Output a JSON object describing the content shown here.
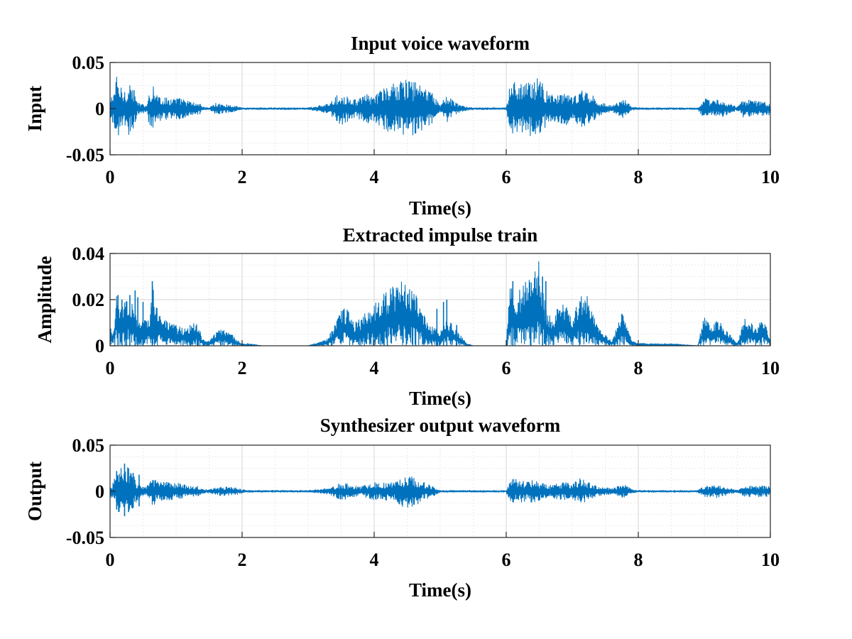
{
  "colors": {
    "series": "#0072BD",
    "grid_major": "#d6d6d6",
    "grid_minor": "#e3e3e3",
    "axes": "#262626"
  },
  "chart_data": [
    {
      "type": "line",
      "title": "Input voice waveform",
      "xlabel": "Time(s)",
      "ylabel": "Input",
      "xlim": [
        0,
        10
      ],
      "ylim": [
        -0.05,
        0.05
      ],
      "xticks": [
        0,
        2,
        4,
        6,
        8,
        10
      ],
      "yticks": [
        -0.05,
        0,
        0.05
      ],
      "xtick_labels": [
        "0",
        "2",
        "4",
        "6",
        "8",
        "10"
      ],
      "ytick_labels": [
        "-0.05",
        "0",
        "0.05"
      ],
      "grid": "major and minor",
      "series": [
        {
          "kind": "symmetric",
          "env_x": [
            0,
            0.05,
            0.1,
            0.15,
            0.2,
            0.25,
            0.3,
            0.35,
            0.4,
            0.45,
            0.5,
            0.55,
            0.6,
            0.65,
            0.7,
            0.8,
            0.9,
            1.0,
            1.1,
            1.2,
            1.3,
            1.35,
            1.4,
            1.5,
            1.6,
            1.7,
            1.8,
            1.9,
            2.0,
            2.1,
            2.3,
            2.6,
            3.0,
            3.3,
            3.4,
            3.5,
            3.6,
            3.7,
            3.8,
            3.9,
            4.0,
            4.1,
            4.2,
            4.3,
            4.4,
            4.5,
            4.6,
            4.7,
            4.8,
            4.9,
            5.0,
            5.1,
            5.2,
            5.3,
            5.4,
            5.5,
            5.6,
            5.8,
            6.0,
            6.05,
            6.1,
            6.2,
            6.3,
            6.4,
            6.5,
            6.6,
            6.7,
            6.8,
            6.9,
            7.0,
            7.1,
            7.2,
            7.3,
            7.4,
            7.6,
            7.75,
            7.8,
            7.9,
            8.0,
            8.5,
            8.9,
            9.0,
            9.1,
            9.2,
            9.3,
            9.5,
            9.6,
            9.7,
            9.8,
            9.9,
            10.0
          ],
          "env_y": [
            0.008,
            0.02,
            0.035,
            0.025,
            0.02,
            0.025,
            0.03,
            0.025,
            0.01,
            0.005,
            0.005,
            0.004,
            0.02,
            0.028,
            0.018,
            0.012,
            0.012,
            0.012,
            0.011,
            0.008,
            0.006,
            0.007,
            0.002,
            0.001,
            0.006,
            0.005,
            0.004,
            0.003,
            0.001,
            0.001,
            0.001,
            0.001,
            0.001,
            0.005,
            0.012,
            0.018,
            0.014,
            0.01,
            0.012,
            0.016,
            0.014,
            0.02,
            0.025,
            0.028,
            0.03,
            0.032,
            0.03,
            0.028,
            0.022,
            0.015,
            0.004,
            0.015,
            0.008,
            0.004,
            0.002,
            0.001,
            0.001,
            0.001,
            0.001,
            0.022,
            0.03,
            0.028,
            0.028,
            0.032,
            0.035,
            0.02,
            0.016,
            0.015,
            0.018,
            0.012,
            0.02,
            0.02,
            0.015,
            0.008,
            0.003,
            0.01,
            0.01,
            0.002,
            0.001,
            0.001,
            0.001,
            0.012,
            0.008,
            0.01,
            0.008,
            0.002,
            0.01,
            0.009,
            0.008,
            0.008,
            0.007
          ]
        }
      ]
    },
    {
      "type": "line",
      "title": "Extracted impulse train",
      "xlabel": "Time(s)",
      "ylabel": "Amplitude",
      "xlim": [
        0,
        10
      ],
      "ylim": [
        0,
        0.04
      ],
      "xticks": [
        0,
        2,
        4,
        6,
        8,
        10
      ],
      "yticks": [
        0,
        0.02,
        0.04
      ],
      "xtick_labels": [
        "0",
        "2",
        "4",
        "6",
        "8",
        "10"
      ],
      "ytick_labels": [
        "0",
        "0.02",
        "0.04"
      ],
      "grid": "major and minor",
      "series": [
        {
          "kind": "envelope",
          "env_x": [
            0,
            0.05,
            0.1,
            0.15,
            0.2,
            0.25,
            0.3,
            0.35,
            0.4,
            0.45,
            0.5,
            0.55,
            0.6,
            0.65,
            0.7,
            0.8,
            0.9,
            1.0,
            1.1,
            1.2,
            1.3,
            1.35,
            1.4,
            1.5,
            1.6,
            1.7,
            1.8,
            1.9,
            2.0,
            2.1,
            2.3,
            2.6,
            3.0,
            3.3,
            3.4,
            3.5,
            3.6,
            3.7,
            3.8,
            3.9,
            4.0,
            4.1,
            4.2,
            4.3,
            4.4,
            4.5,
            4.6,
            4.7,
            4.8,
            4.9,
            5.0,
            5.1,
            5.2,
            5.3,
            5.4,
            5.5,
            5.6,
            5.8,
            6.0,
            6.05,
            6.1,
            6.2,
            6.3,
            6.4,
            6.5,
            6.6,
            6.7,
            6.8,
            6.9,
            7.0,
            7.1,
            7.2,
            7.3,
            7.4,
            7.6,
            7.75,
            7.8,
            7.9,
            8.0,
            8.5,
            8.9,
            9.0,
            9.1,
            9.2,
            9.3,
            9.5,
            9.6,
            9.7,
            9.8,
            9.9,
            10.0
          ],
          "env_y": [
            0.008,
            0.006,
            0.022,
            0.015,
            0.018,
            0.024,
            0.02,
            0.018,
            0.012,
            0.01,
            0.012,
            0.012,
            0.014,
            0.028,
            0.02,
            0.012,
            0.01,
            0.009,
            0.008,
            0.009,
            0.01,
            0.008,
            0.003,
            0.002,
            0.006,
            0.008,
            0.007,
            0.003,
            0.001,
            0.001,
            0.0,
            0.0,
            0.0,
            0.003,
            0.01,
            0.018,
            0.016,
            0.01,
            0.012,
            0.016,
            0.018,
            0.022,
            0.024,
            0.026,
            0.028,
            0.027,
            0.024,
            0.02,
            0.01,
            0.008,
            0.006,
            0.012,
            0.009,
            0.005,
            0.001,
            0.0,
            0.0,
            0.0,
            0.0,
            0.026,
            0.024,
            0.024,
            0.03,
            0.034,
            0.037,
            0.016,
            0.012,
            0.02,
            0.018,
            0.012,
            0.02,
            0.024,
            0.016,
            0.008,
            0.002,
            0.014,
            0.014,
            0.002,
            0.001,
            0.001,
            0.0,
            0.014,
            0.008,
            0.012,
            0.008,
            0.001,
            0.012,
            0.01,
            0.009,
            0.011,
            0.004
          ],
          "spikes": [
            [
              0.12,
              0.022
            ],
            [
              0.18,
              0.02
            ],
            [
              0.25,
              0.018
            ],
            [
              0.3,
              0.022
            ],
            [
              0.38,
              0.024
            ],
            [
              0.42,
              0.021
            ],
            [
              0.5,
              0.019
            ],
            [
              0.64,
              0.028
            ],
            [
              4.15,
              0.016
            ],
            [
              4.2,
              0.015
            ],
            [
              4.95,
              0.016
            ],
            [
              5.05,
              0.019
            ],
            [
              5.1,
              0.02
            ],
            [
              5.25,
              0.009
            ],
            [
              6.1,
              0.028
            ],
            [
              6.55,
              0.03
            ],
            [
              6.6,
              0.028
            ]
          ]
        }
      ]
    },
    {
      "type": "line",
      "title": "Synthesizer output waveform",
      "xlabel": "Time(s)",
      "ylabel": "Output",
      "xlim": [
        0,
        10
      ],
      "ylim": [
        -0.05,
        0.05
      ],
      "xticks": [
        0,
        2,
        4,
        6,
        8,
        10
      ],
      "yticks": [
        -0.05,
        0,
        0.05
      ],
      "xtick_labels": [
        "0",
        "2",
        "4",
        "6",
        "8",
        "10"
      ],
      "ytick_labels": [
        "-0.05",
        "0",
        "0.05"
      ],
      "grid": "major and minor",
      "series": [
        {
          "kind": "symmetric",
          "env_x": [
            0,
            0.05,
            0.1,
            0.15,
            0.2,
            0.25,
            0.3,
            0.35,
            0.4,
            0.45,
            0.5,
            0.55,
            0.6,
            0.65,
            0.7,
            0.8,
            0.9,
            1.0,
            1.1,
            1.2,
            1.3,
            1.35,
            1.4,
            1.5,
            1.6,
            1.7,
            1.8,
            1.9,
            2.0,
            2.1,
            2.3,
            2.6,
            3.0,
            3.3,
            3.4,
            3.5,
            3.6,
            3.7,
            3.8,
            3.9,
            4.0,
            4.1,
            4.2,
            4.3,
            4.4,
            4.5,
            4.6,
            4.7,
            4.8,
            4.9,
            5.0,
            5.1,
            5.2,
            5.3,
            5.4,
            5.5,
            5.6,
            5.8,
            6.0,
            6.05,
            6.1,
            6.2,
            6.3,
            6.4,
            6.5,
            6.6,
            6.7,
            6.8,
            6.9,
            7.0,
            7.1,
            7.2,
            7.3,
            7.4,
            7.6,
            7.75,
            7.8,
            7.9,
            8.0,
            8.5,
            8.9,
            9.0,
            9.1,
            9.2,
            9.3,
            9.5,
            9.6,
            9.7,
            9.8,
            9.9,
            10.0
          ],
          "env_y": [
            0.006,
            0.01,
            0.02,
            0.028,
            0.022,
            0.028,
            0.024,
            0.018,
            0.012,
            0.008,
            0.006,
            0.005,
            0.01,
            0.016,
            0.012,
            0.01,
            0.01,
            0.009,
            0.008,
            0.006,
            0.006,
            0.005,
            0.002,
            0.002,
            0.004,
            0.005,
            0.005,
            0.004,
            0.002,
            0.001,
            0.001,
            0.001,
            0.001,
            0.003,
            0.006,
            0.01,
            0.008,
            0.006,
            0.005,
            0.008,
            0.01,
            0.008,
            0.011,
            0.01,
            0.016,
            0.018,
            0.017,
            0.012,
            0.008,
            0.005,
            0.001,
            0.001,
            0.001,
            0.001,
            0.001,
            0.001,
            0.001,
            0.001,
            0.001,
            0.012,
            0.014,
            0.012,
            0.011,
            0.012,
            0.01,
            0.008,
            0.007,
            0.009,
            0.01,
            0.008,
            0.014,
            0.012,
            0.008,
            0.005,
            0.003,
            0.007,
            0.007,
            0.002,
            0.001,
            0.001,
            0.001,
            0.006,
            0.006,
            0.007,
            0.005,
            0.001,
            0.006,
            0.006,
            0.006,
            0.006,
            0.005
          ],
          "spikes": [
            [
              0.1,
              0.022
            ],
            [
              0.22,
              0.03
            ],
            [
              0.28,
              0.025
            ],
            [
              0.35,
              0.02
            ],
            [
              0.44,
              0.018
            ]
          ]
        }
      ]
    }
  ]
}
